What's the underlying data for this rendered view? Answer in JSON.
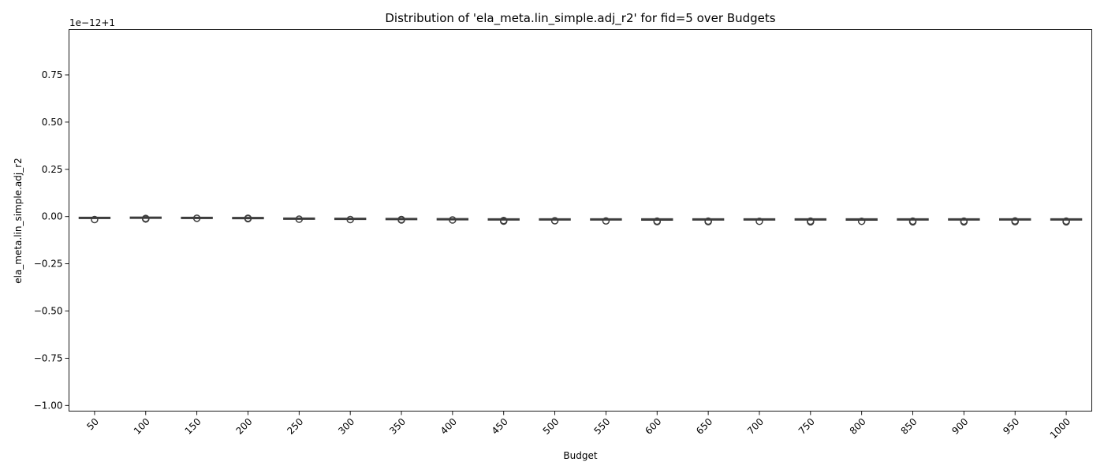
{
  "chart_data": {
    "type": "box",
    "title": "Distribution of 'ela_meta.lin_simple.adj_r2' for fid=5 over Budgets",
    "xlabel": "Budget",
    "ylabel": "ela_meta.lin_simple.adj_r2",
    "y_offset_label": "1e−12+1",
    "y_offset": 1,
    "y_scale": 1e-12,
    "ylim": [
      -1.03,
      0.99
    ],
    "yticks": [
      -1.0,
      -0.75,
      -0.5,
      -0.25,
      0.0,
      0.25,
      0.5,
      0.75
    ],
    "ytick_labels": [
      "−1.00",
      "−0.75",
      "−0.50",
      "−0.25",
      "0.00",
      "0.25",
      "0.50",
      "0.75"
    ],
    "categories": [
      "50",
      "100",
      "150",
      "200",
      "250",
      "300",
      "350",
      "400",
      "450",
      "500",
      "550",
      "600",
      "650",
      "700",
      "750",
      "800",
      "850",
      "900",
      "950",
      "1000"
    ],
    "box_color": "#5a5a5a",
    "line_color": "#3d3d3d",
    "boxes": [
      {
        "q1": -0.01,
        "median": -0.007,
        "q3": -0.004,
        "whislo": -0.012,
        "whishi": -0.002,
        "fliers": [
          -0.016
        ]
      },
      {
        "q1": -0.007,
        "median": -0.005,
        "q3": -0.003,
        "whislo": -0.009,
        "whishi": -0.001,
        "fliers": [
          -0.01,
          -0.013
        ]
      },
      {
        "q1": -0.006,
        "median": -0.005,
        "q3": -0.004,
        "whislo": -0.008,
        "whishi": -0.003,
        "fliers": [
          -0.009
        ]
      },
      {
        "q1": -0.007,
        "median": -0.006,
        "q3": -0.005,
        "whislo": -0.008,
        "whishi": -0.004,
        "fliers": [
          -0.009,
          -0.011
        ]
      },
      {
        "q1": -0.01,
        "median": -0.009,
        "q3": -0.008,
        "whislo": -0.011,
        "whishi": -0.007,
        "fliers": [
          -0.014
        ]
      },
      {
        "q1": -0.012,
        "median": -0.011,
        "q3": -0.009,
        "whislo": -0.013,
        "whishi": -0.008,
        "fliers": [
          -0.016
        ]
      },
      {
        "q1": -0.014,
        "median": -0.012,
        "q3": -0.01,
        "whislo": -0.015,
        "whishi": -0.009,
        "fliers": [
          -0.016,
          -0.018
        ]
      },
      {
        "q1": -0.013,
        "median": -0.012,
        "q3": -0.011,
        "whislo": -0.014,
        "whishi": -0.01,
        "fliers": [
          -0.018
        ]
      },
      {
        "q1": -0.016,
        "median": -0.014,
        "q3": -0.012,
        "whislo": -0.018,
        "whishi": -0.01,
        "fliers": [
          -0.021,
          -0.024
        ]
      },
      {
        "q1": -0.017,
        "median": -0.015,
        "q3": -0.012,
        "whislo": -0.019,
        "whishi": -0.011,
        "fliers": [
          -0.022
        ]
      },
      {
        "q1": -0.017,
        "median": -0.015,
        "q3": -0.012,
        "whislo": -0.019,
        "whishi": -0.011,
        "fliers": [
          -0.023
        ]
      },
      {
        "q1": -0.019,
        "median": -0.016,
        "q3": -0.012,
        "whislo": -0.02,
        "whishi": -0.011,
        "fliers": [
          -0.024,
          -0.027
        ]
      },
      {
        "q1": -0.018,
        "median": -0.016,
        "q3": -0.012,
        "whislo": -0.02,
        "whishi": -0.011,
        "fliers": [
          -0.024,
          -0.027
        ]
      },
      {
        "q1": -0.018,
        "median": -0.016,
        "q3": -0.012,
        "whislo": -0.02,
        "whishi": -0.011,
        "fliers": [
          -0.025
        ]
      },
      {
        "q1": -0.018,
        "median": -0.016,
        "q3": -0.012,
        "whislo": -0.02,
        "whishi": -0.011,
        "fliers": [
          -0.024,
          -0.028
        ]
      },
      {
        "q1": -0.019,
        "median": -0.016,
        "q3": -0.012,
        "whislo": -0.021,
        "whishi": -0.011,
        "fliers": [
          -0.025
        ]
      },
      {
        "q1": -0.018,
        "median": -0.016,
        "q3": -0.012,
        "whislo": -0.02,
        "whishi": -0.011,
        "fliers": [
          -0.024,
          -0.028
        ]
      },
      {
        "q1": -0.018,
        "median": -0.016,
        "q3": -0.012,
        "whislo": -0.02,
        "whishi": -0.011,
        "fliers": [
          -0.024,
          -0.028
        ]
      },
      {
        "q1": -0.017,
        "median": -0.015,
        "q3": -0.012,
        "whislo": -0.019,
        "whishi": -0.011,
        "fliers": [
          -0.023,
          -0.027
        ]
      },
      {
        "q1": -0.018,
        "median": -0.016,
        "q3": -0.012,
        "whislo": -0.02,
        "whishi": -0.011,
        "fliers": [
          -0.024,
          -0.028
        ]
      }
    ]
  }
}
